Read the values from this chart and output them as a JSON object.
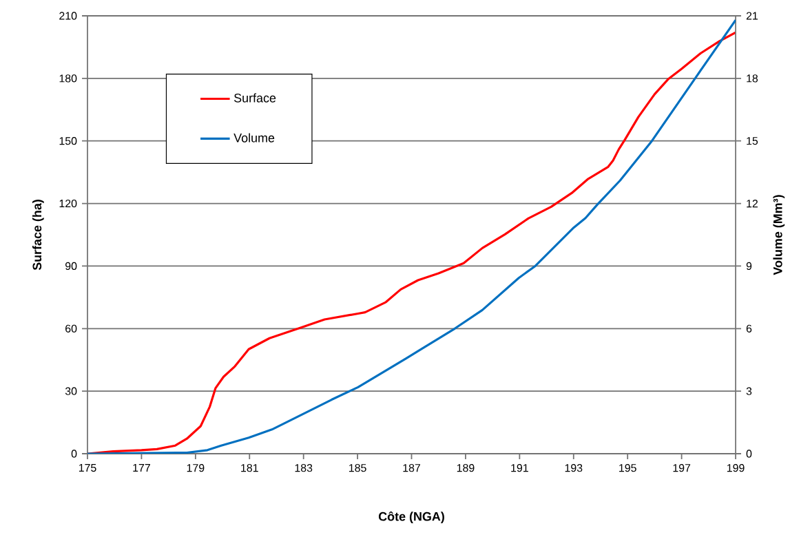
{
  "chart_data": {
    "type": "line",
    "xlabel": "Côte (NGA)",
    "ylabel": "Surface (ha)",
    "y2label": "Volume (Mm³)",
    "xlim": [
      175,
      199
    ],
    "xticks": [
      175,
      177,
      179,
      181,
      183,
      185,
      187,
      189,
      191,
      193,
      195,
      197,
      199
    ],
    "ylim": [
      0,
      210
    ],
    "yticks": [
      0,
      30,
      60,
      90,
      120,
      150,
      180,
      210
    ],
    "y2lim": [
      0,
      21
    ],
    "y2ticks": [
      0,
      3,
      6,
      9,
      12,
      15,
      18,
      21
    ],
    "grid": "y",
    "legend": "top left",
    "marker": "none",
    "series": [
      {
        "name": "Surface",
        "color": "#ff0000",
        "x": [
          175,
          175.95,
          177.0,
          177.57,
          178.25,
          178.68,
          179.19,
          179.53,
          179.74,
          180.04,
          180.46,
          180.97,
          181.74,
          182.93,
          183.78,
          185.02,
          185.28,
          186.05,
          186.6,
          187.24,
          188.0,
          188.93,
          189.62,
          190.46,
          191.33,
          192.17,
          192.93,
          193.52,
          194.28,
          194.46,
          194.67,
          194.9,
          195.4,
          196.0,
          196.5,
          197.0,
          197.7,
          198.4,
          199.0
        ],
        "values": [
          0,
          1.1,
          1.7,
          2.2,
          3.9,
          7.2,
          13.2,
          22.6,
          31.4,
          36.9,
          41.9,
          50.1,
          55.4,
          60.6,
          64.4,
          67.2,
          67.8,
          72.7,
          78.8,
          83.2,
          86.5,
          91.4,
          98.6,
          105.2,
          112.9,
          118.4,
          125,
          131.6,
          137.6,
          140.6,
          145.9,
          150.6,
          161.5,
          172.4,
          179.6,
          184.6,
          192,
          197.8,
          202
        ]
      },
      {
        "name": "Volume",
        "color": "#0070c0",
        "axis": "y2",
        "x": [
          175,
          178.68,
          179.44,
          179.95,
          180.97,
          181.83,
          182.93,
          184.04,
          185.02,
          186.81,
          188.6,
          189.62,
          190.97,
          191.58,
          193.01,
          193.44,
          193.88,
          194.72,
          195.9,
          197.5,
          199.0
        ],
        "values": [
          0,
          0.05,
          0.17,
          0.39,
          0.77,
          1.16,
          1.87,
          2.59,
          3.19,
          4.58,
          6.0,
          6.89,
          8.43,
          9.0,
          10.85,
          11.3,
          11.95,
          13.1,
          15.0,
          18.0,
          20.8
        ]
      }
    ]
  }
}
